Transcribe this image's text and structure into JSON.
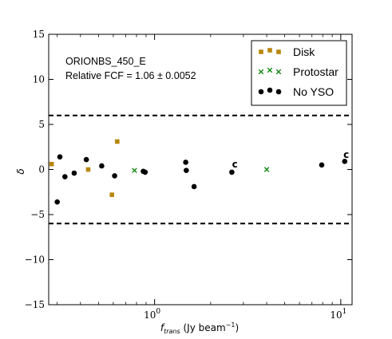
{
  "chart_data": {
    "type": "scatter",
    "title": "",
    "annotation_lines": [
      "ORIONBS_450_E",
      "Relative FCF = 1.06 ± 0.0052"
    ],
    "xlabel": "f_trans (Jy beam⁻¹)",
    "xlabel_parts": {
      "f": "f",
      "sub": "trans",
      "unit": " (Jy beam",
      "sup": "−1",
      "close": ")"
    },
    "ylabel": "δ",
    "xscale": "log",
    "xlim": [
      0.27,
      11.5
    ],
    "ylim": [
      -15,
      15
    ],
    "grid": false,
    "legend_position": "top-right",
    "x_tick_values": [
      1,
      10
    ],
    "x_tick_labels": [
      {
        "base": "10",
        "exp": "0"
      },
      {
        "base": "10",
        "exp": "1"
      }
    ],
    "y_tick_values": [
      -15,
      -10,
      -5,
      0,
      5,
      10,
      15
    ],
    "y_tick_labels": [
      "−15",
      "−10",
      "−5",
      "0",
      "5",
      "10",
      "15"
    ],
    "reference_lines": [
      {
        "y": 6,
        "style": "dashed",
        "color": "#000000"
      },
      {
        "y": -6,
        "style": "dashed",
        "color": "#000000"
      }
    ],
    "series": [
      {
        "name": "Disk",
        "marker": "square",
        "color": "#b8860b",
        "points": [
          [
            0.28,
            0.6
          ],
          [
            0.44,
            0.0
          ],
          [
            0.59,
            -2.8
          ],
          [
            0.63,
            3.1
          ]
        ]
      },
      {
        "name": "Protostar",
        "marker": "x",
        "color": "#008000",
        "points": [
          [
            0.78,
            -0.1
          ],
          [
            4.0,
            0.0
          ]
        ]
      },
      {
        "name": "No YSO",
        "marker": "circle",
        "color": "#000000",
        "points": [
          [
            0.31,
            1.4
          ],
          [
            0.3,
            -3.6
          ],
          [
            0.33,
            -0.8
          ],
          [
            0.37,
            -0.4
          ],
          [
            0.43,
            1.1
          ],
          [
            0.52,
            0.4
          ],
          [
            0.61,
            -0.7
          ],
          [
            0.87,
            -0.2
          ],
          [
            0.89,
            -0.3
          ],
          [
            1.47,
            0.8
          ],
          [
            1.48,
            -0.1
          ],
          [
            1.63,
            -1.9
          ],
          [
            2.6,
            -0.3
          ],
          [
            7.9,
            0.5
          ],
          [
            10.5,
            0.9
          ]
        ]
      }
    ],
    "point_annotations": [
      {
        "text": "c",
        "x": 2.7,
        "y": 0.2
      },
      {
        "text": "c",
        "x": 10.7,
        "y": 1.3
      }
    ]
  }
}
